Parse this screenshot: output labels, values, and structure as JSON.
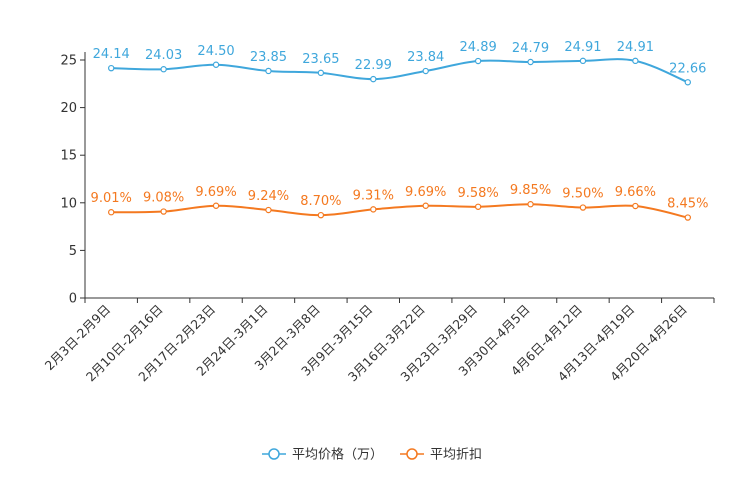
{
  "chart_data": {
    "type": "line",
    "title": "",
    "xlabel": "",
    "ylabel": "",
    "ylim": [
      0,
      25
    ],
    "yticks": [
      0,
      5,
      10,
      15,
      20,
      25
    ],
    "grid": false,
    "legend_position": "bottom-center",
    "categories": [
      "2月3日-2月9日",
      "2月10日-2月16日",
      "2月17日-2月23日",
      "2月24日-3月1日",
      "3月2日-3月8日",
      "3月9日-3月15日",
      "3月16日-3月22日",
      "3月23日-3月29日",
      "3月30日-4月5日",
      "4月6日-4月12日",
      "4月13日-4月19日",
      "4月20日-4月26日"
    ],
    "series": [
      {
        "name": "平均价格（万）",
        "color": "#3fa7dc",
        "values": [
          24.14,
          24.03,
          24.5,
          23.85,
          23.65,
          22.99,
          23.84,
          24.89,
          24.79,
          24.91,
          24.91,
          22.66
        ],
        "labels": [
          "24.14",
          "24.03",
          "24.50",
          "23.85",
          "23.65",
          "22.99",
          "23.84",
          "24.89",
          "24.79",
          "24.91",
          "24.91",
          "22.66"
        ]
      },
      {
        "name": "平均折扣",
        "color": "#f47920",
        "values": [
          9.01,
          9.08,
          9.69,
          9.24,
          8.7,
          9.31,
          9.69,
          9.58,
          9.85,
          9.5,
          9.66,
          8.45
        ],
        "labels": [
          "9.01%",
          "9.08%",
          "9.69%",
          "9.24%",
          "8.70%",
          "9.31%",
          "9.69%",
          "9.58%",
          "9.85%",
          "9.50%",
          "9.66%",
          "8.45%"
        ]
      }
    ]
  }
}
